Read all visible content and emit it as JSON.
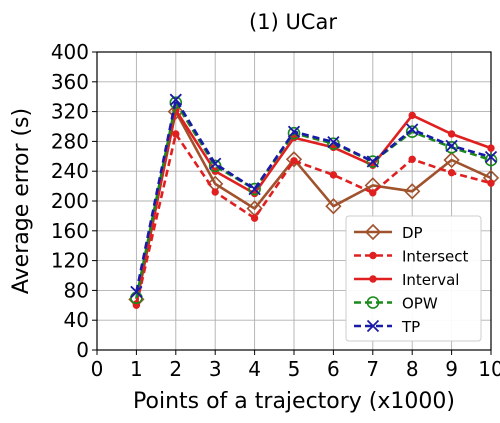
{
  "chart_data": {
    "type": "line",
    "title": "(1) UCar",
    "xlabel": "Points of a trajectory (x1000)",
    "ylabel": "Average error (s)",
    "xlim": [
      0,
      10
    ],
    "ylim": [
      0,
      400
    ],
    "xticks": [
      0,
      1,
      2,
      3,
      4,
      5,
      6,
      7,
      8,
      9,
      10
    ],
    "yticks": [
      0,
      40,
      80,
      120,
      160,
      200,
      240,
      280,
      320,
      360,
      400
    ],
    "grid": true,
    "legend_position": "lower-right",
    "x": [
      1,
      2,
      3,
      4,
      5,
      6,
      7,
      8,
      9,
      10
    ],
    "series": [
      {
        "name": "DP",
        "color": "#a0522d",
        "dash": "solid",
        "marker": "diamond-open",
        "values": [
          68,
          320,
          223,
          190,
          256,
          193,
          221,
          213,
          255,
          231
        ]
      },
      {
        "name": "Intersect",
        "color": "#e02020",
        "dash": "dashed",
        "marker": "dot",
        "values": [
          60,
          290,
          212,
          177,
          254,
          235,
          211,
          256,
          238,
          224
        ]
      },
      {
        "name": "Interval",
        "color": "#e02020",
        "dash": "solid",
        "marker": "dot",
        "values": [
          62,
          322,
          240,
          210,
          285,
          272,
          248,
          315,
          290,
          271
        ]
      },
      {
        "name": "OPW",
        "color": "#1a8a1a",
        "dash": "dashed",
        "marker": "circle-open",
        "values": [
          70,
          332,
          247,
          216,
          291,
          277,
          253,
          293,
          272,
          255
        ]
      },
      {
        "name": "TP",
        "color": "#1a1aa8",
        "dash": "dashed",
        "marker": "x",
        "values": [
          78,
          336,
          250,
          216,
          293,
          279,
          253,
          296,
          274,
          259
        ]
      }
    ]
  }
}
